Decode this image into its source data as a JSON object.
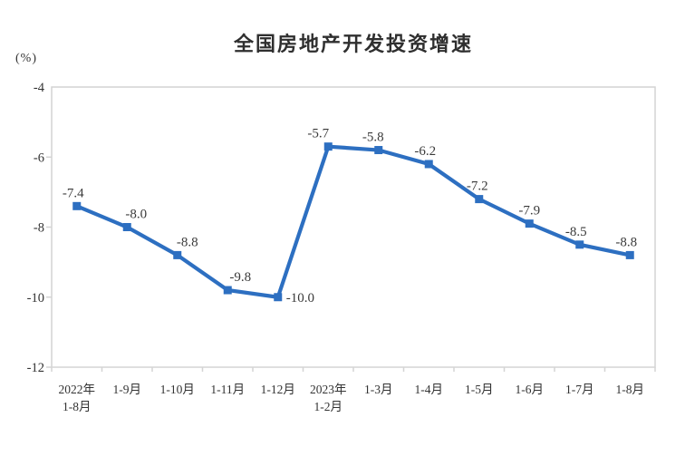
{
  "chart_data": {
    "type": "line",
    "title": "全国房地产开发投资增速",
    "ylabel": "(%)",
    "xlabel": "",
    "series_name": "全国房地产开发投资增速",
    "categories": [
      "2022年\n1-8月",
      "1-9月",
      "1-10月",
      "1-11月",
      "1-12月",
      "2023年\n1-2月",
      "1-3月",
      "1-4月",
      "1-5月",
      "1-6月",
      "1-7月",
      "1-8月"
    ],
    "values": [
      -7.4,
      -8.0,
      -8.8,
      -9.8,
      -10.0,
      -5.7,
      -5.8,
      -6.2,
      -7.2,
      -7.9,
      -8.5,
      -8.8
    ],
    "point_labels": [
      "-7.4",
      "-8.0",
      "-8.8",
      "-9.8",
      "-10.0",
      "-5.7",
      "-5.8",
      "-6.2",
      "-7.2",
      "-7.9",
      "-8.5",
      "-8.8"
    ],
    "ylim": [
      -12,
      -4
    ],
    "yticks": [
      -4,
      -6,
      -8,
      -10,
      -12
    ],
    "grid": false,
    "legend": "none",
    "marker": "square",
    "colors": {
      "line": "#2d6fc1",
      "marker": "#2d6fc1",
      "axis": "#d4d4d4",
      "text": "#333333",
      "data_label": "#3a3a3a",
      "title": "#2f2f2f",
      "background": "#ffffff"
    }
  }
}
